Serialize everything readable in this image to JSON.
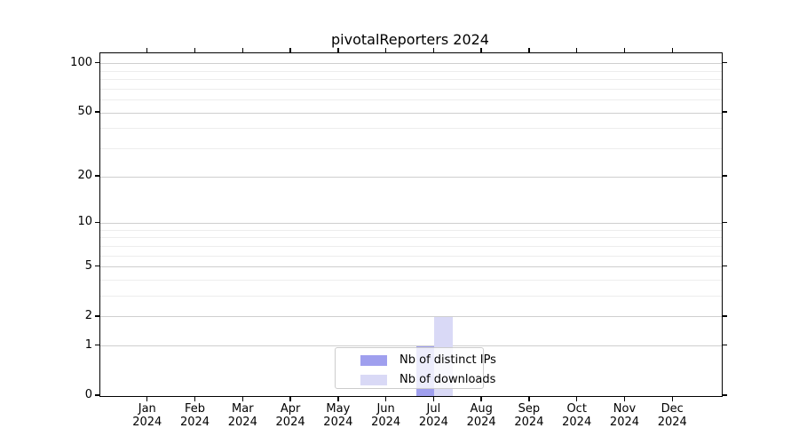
{
  "figure": {
    "title": "pivotalReporters 2024",
    "background_color": "#ffffff"
  },
  "chart_data": {
    "type": "bar",
    "title": "pivotalReporters 2024",
    "xlabel": "",
    "ylabel": "",
    "categories": [
      "Jan 2024",
      "Feb 2024",
      "Mar 2024",
      "Apr 2024",
      "May 2024",
      "Jun 2024",
      "Jul 2024",
      "Aug 2024",
      "Sep 2024",
      "Oct 2024",
      "Nov 2024",
      "Dec 2024"
    ],
    "x_tick_months": [
      "Jan",
      "Feb",
      "Mar",
      "Apr",
      "May",
      "Jun",
      "Jul",
      "Aug",
      "Sep",
      "Oct",
      "Nov",
      "Dec"
    ],
    "x_tick_year": "2024",
    "series": [
      {
        "name": "Nb of distinct IPs",
        "color": "#9f9fee",
        "values": [
          0,
          0,
          0,
          0,
          0,
          0,
          1,
          0,
          0,
          0,
          0,
          0
        ]
      },
      {
        "name": "Nb of downloads",
        "color": "#d9d9f6",
        "values": [
          0,
          0,
          0,
          0,
          0,
          0,
          2,
          0,
          0,
          0,
          0,
          0
        ]
      }
    ],
    "yscale": "log1p",
    "ylim": [
      0,
      115.5
    ],
    "yticks_major": [
      0,
      1,
      2,
      5,
      10,
      20,
      50,
      100
    ],
    "yticks_minor": [
      3,
      4,
      6,
      7,
      8,
      9,
      30,
      40,
      60,
      70,
      80,
      90
    ],
    "grid": "horizontal-major-and-minor",
    "grid_major_color": "#cfcfcf",
    "grid_minor_color": "#ededed",
    "axis_color": "#000000",
    "legend": {
      "position": "lower-center",
      "entries": [
        "Nb of distinct IPs",
        "Nb of downloads"
      ]
    }
  }
}
